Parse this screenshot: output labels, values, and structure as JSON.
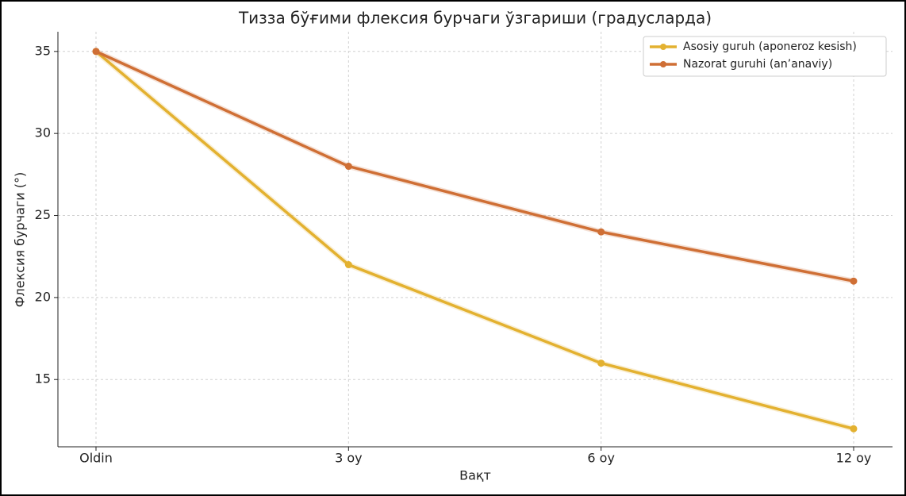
{
  "chart_data": {
    "type": "line",
    "title": "Тизза бўғими флексия бурчаги ўзгариши (градусларда)",
    "x_label": "Вақт",
    "y_label": "Флексия бурчаги (°)",
    "categories": [
      "Oldin",
      "3 oy",
      "6 oy",
      "12 oy"
    ],
    "series": [
      {
        "name": "Asosiy guruh (aponeroz kesish)",
        "color": "#e3b130",
        "values": [
          35,
          22,
          16,
          12
        ]
      },
      {
        "name": "Nazorat guruhi (an’anaviy)",
        "color": "#cf6f35",
        "values": [
          35,
          28,
          24,
          21
        ]
      }
    ],
    "ylim": [
      10.9,
      36.2
    ],
    "yticks": [
      15,
      20,
      25,
      30,
      35
    ],
    "grid": true,
    "legend": "upper right"
  }
}
